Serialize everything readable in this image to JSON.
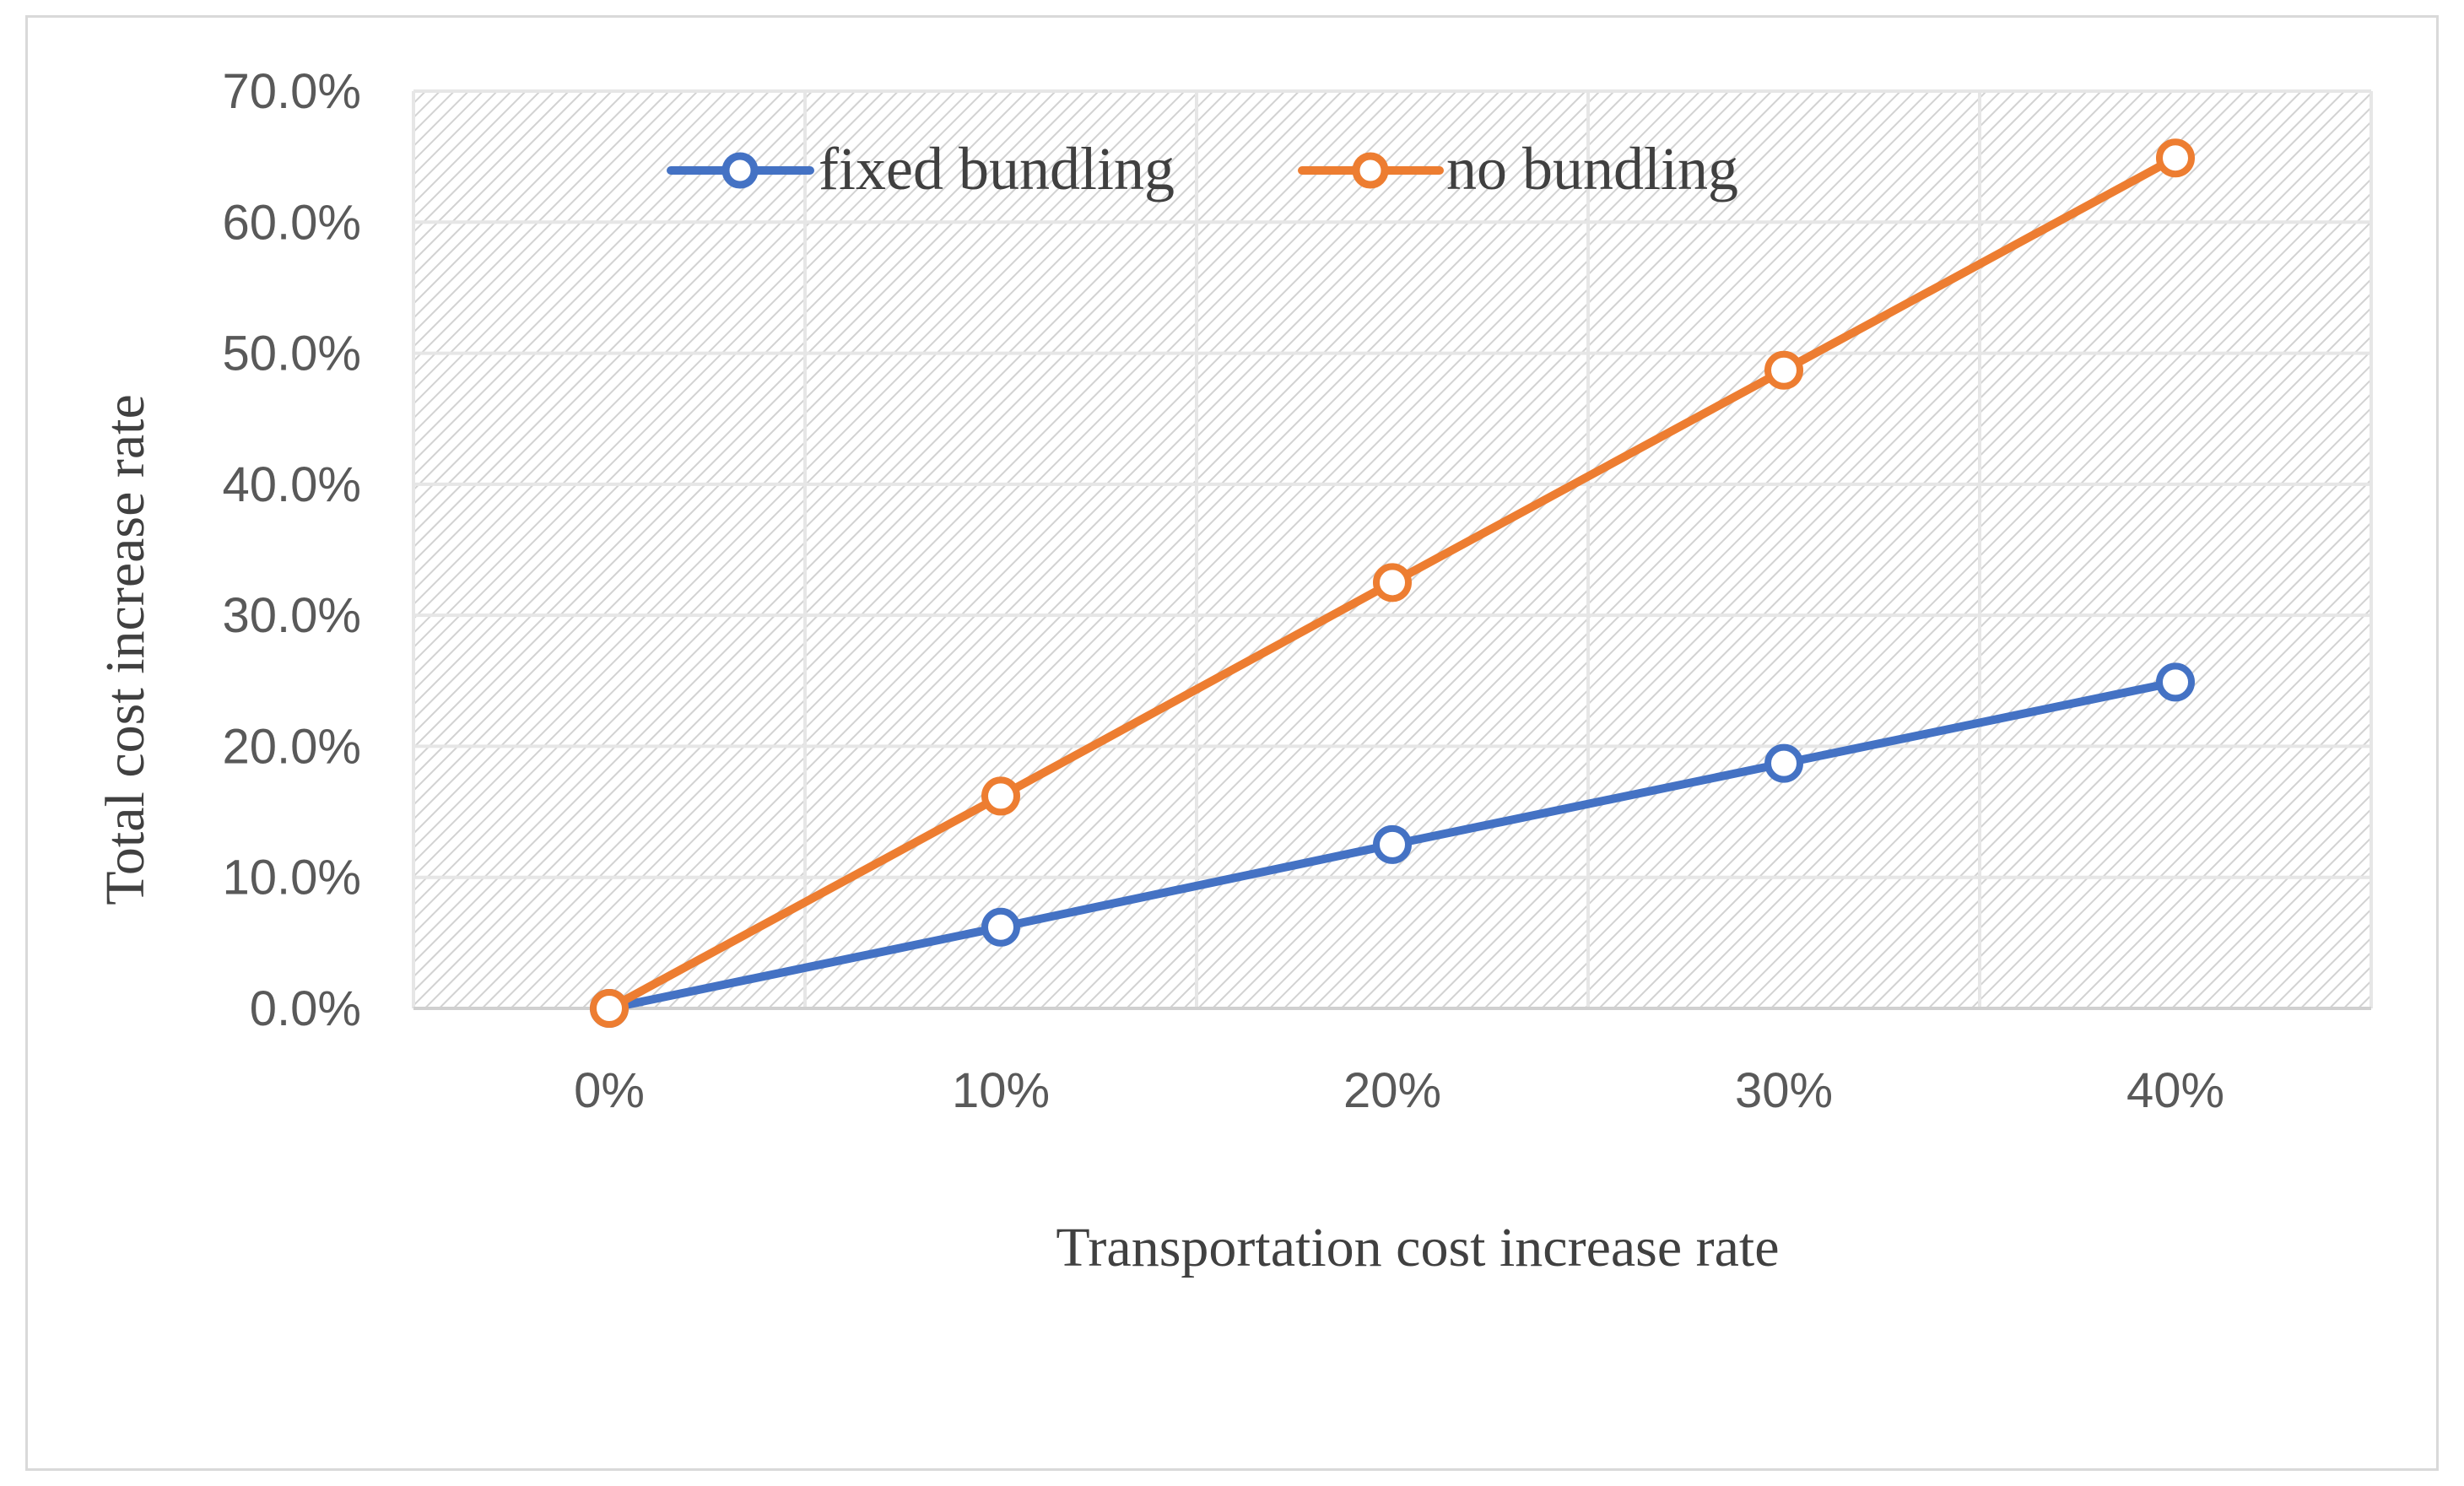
{
  "chart_data": {
    "type": "line",
    "title": "",
    "xlabel": "Transportation cost increase rate",
    "ylabel": "Total cost increase rate",
    "categories": [
      "0%",
      "10%",
      "20%",
      "30%",
      "40%"
    ],
    "ylim": [
      0,
      70
    ],
    "yticks": [
      0,
      10,
      20,
      30,
      40,
      50,
      60,
      70
    ],
    "ytick_labels": [
      "0.0%",
      "10.0%",
      "20.0%",
      "30.0%",
      "40.0%",
      "50.0%",
      "60.0%",
      "70.0%"
    ],
    "grid": true,
    "legend_position": "top-center",
    "series": [
      {
        "name": "fixed bundling",
        "color": "#4472C4",
        "values": [
          0,
          6.2,
          12.5,
          18.7,
          24.9
        ]
      },
      {
        "name": "no bundling",
        "color": "#ED7D31",
        "values": [
          0,
          16.2,
          32.5,
          48.7,
          64.9
        ]
      }
    ]
  }
}
